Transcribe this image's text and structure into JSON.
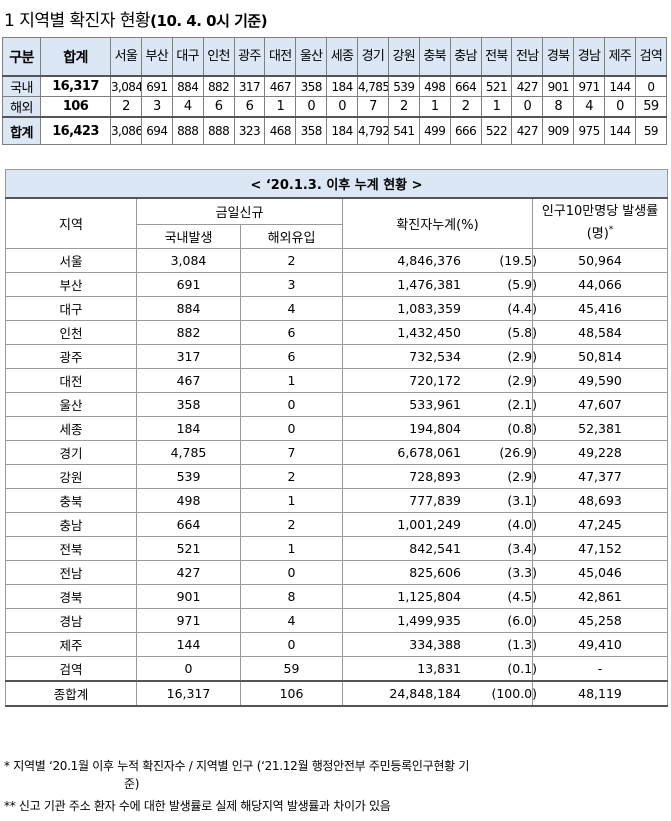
{
  "title": {
    "prefix": "1 지역별 확진자 현황",
    "suffix": "(10. 4. 0시 기준)"
  },
  "top_table": {
    "col_label": "구분",
    "total_label": "합계",
    "regions": [
      "서울",
      "부산",
      "대구",
      "인천",
      "광주",
      "대전",
      "울산",
      "세종",
      "경기",
      "강원",
      "충북",
      "충남",
      "전북",
      "전남",
      "경북",
      "경남",
      "제주",
      "검역"
    ],
    "rows": [
      {
        "label": "국내",
        "total": "16,317",
        "values": [
          "3,084",
          "691",
          "884",
          "882",
          "317",
          "467",
          "358",
          "184",
          "4,785",
          "539",
          "498",
          "664",
          "521",
          "427",
          "901",
          "971",
          "144",
          "0"
        ]
      },
      {
        "label": "해외",
        "total": "106",
        "values": [
          "2",
          "3",
          "4",
          "6",
          "6",
          "1",
          "0",
          "0",
          "7",
          "2",
          "1",
          "2",
          "1",
          "0",
          "8",
          "4",
          "0",
          "59"
        ]
      },
      {
        "label": "합계",
        "total": "16,423",
        "values": [
          "3,086",
          "694",
          "888",
          "888",
          "323",
          "468",
          "358",
          "184",
          "4,792",
          "541",
          "499",
          "666",
          "522",
          "427",
          "909",
          "975",
          "144",
          "59"
        ]
      }
    ]
  },
  "cumulative_table": {
    "caption": "< ‘20.1.3. 이후 누계 현황 >",
    "headers": {
      "region": "지역",
      "today_new": "금일신규",
      "domestic": "국내발생",
      "overseas": "해외유입",
      "cumulative": "확진자누계(%)",
      "rate": "인구10만명당 발생률(명)",
      "rate_mark": "*"
    },
    "rows": [
      {
        "region": "서울",
        "domestic": "3,084",
        "overseas": "2",
        "cumulative": "4,846,376",
        "pct": "(19.5)",
        "rate": "50,964"
      },
      {
        "region": "부산",
        "domestic": "691",
        "overseas": "3",
        "cumulative": "1,476,381",
        "pct": "(5.9)",
        "rate": "44,066"
      },
      {
        "region": "대구",
        "domestic": "884",
        "overseas": "4",
        "cumulative": "1,083,359",
        "pct": "(4.4)",
        "rate": "45,416"
      },
      {
        "region": "인천",
        "domestic": "882",
        "overseas": "6",
        "cumulative": "1,432,450",
        "pct": "(5.8)",
        "rate": "48,584"
      },
      {
        "region": "광주",
        "domestic": "317",
        "overseas": "6",
        "cumulative": "732,534",
        "pct": "(2.9)",
        "rate": "50,814"
      },
      {
        "region": "대전",
        "domestic": "467",
        "overseas": "1",
        "cumulative": "720,172",
        "pct": "(2.9)",
        "rate": "49,590"
      },
      {
        "region": "울산",
        "domestic": "358",
        "overseas": "0",
        "cumulative": "533,961",
        "pct": "(2.1)",
        "rate": "47,607"
      },
      {
        "region": "세종",
        "domestic": "184",
        "overseas": "0",
        "cumulative": "194,804",
        "pct": "(0.8)",
        "rate": "52,381"
      },
      {
        "region": "경기",
        "domestic": "4,785",
        "overseas": "7",
        "cumulative": "6,678,061",
        "pct": "(26.9)",
        "rate": "49,228"
      },
      {
        "region": "강원",
        "domestic": "539",
        "overseas": "2",
        "cumulative": "728,893",
        "pct": "(2.9)",
        "rate": "47,377"
      },
      {
        "region": "충북",
        "domestic": "498",
        "overseas": "1",
        "cumulative": "777,839",
        "pct": "(3.1)",
        "rate": "48,693"
      },
      {
        "region": "충남",
        "domestic": "664",
        "overseas": "2",
        "cumulative": "1,001,249",
        "pct": "(4.0)",
        "rate": "47,245"
      },
      {
        "region": "전북",
        "domestic": "521",
        "overseas": "1",
        "cumulative": "842,541",
        "pct": "(3.4)",
        "rate": "47,152"
      },
      {
        "region": "전남",
        "domestic": "427",
        "overseas": "0",
        "cumulative": "825,606",
        "pct": "(3.3)",
        "rate": "45,046"
      },
      {
        "region": "경북",
        "domestic": "901",
        "overseas": "8",
        "cumulative": "1,125,804",
        "pct": "(4.5)",
        "rate": "42,861"
      },
      {
        "region": "경남",
        "domestic": "971",
        "overseas": "4",
        "cumulative": "1,499,935",
        "pct": "(6.0)",
        "rate": "45,258"
      },
      {
        "region": "제주",
        "domestic": "144",
        "overseas": "0",
        "cumulative": "334,388",
        "pct": "(1.3)",
        "rate": "49,410"
      },
      {
        "region": "검역",
        "domestic": "0",
        "overseas": "59",
        "cumulative": "13,831",
        "pct": "(0.1)",
        "rate": "-"
      }
    ],
    "total": {
      "region": "종합계",
      "domestic": "16,317",
      "overseas": "106",
      "cumulative": "24,848,184",
      "pct": "(100.0)",
      "rate": "48,119"
    }
  },
  "footnotes": {
    "fn1_a": "* 지역별 ‘20.1월 이후 누적 확진자수 / 지역별 인구 (‘21.12월 행정안전부 주민등록인구현황 기",
    "fn1_b": "준)",
    "fn2": "** 신고 기관 주소 환자 수에 대한 발생률로 실제 해당지역 발생률과 차이가 있음"
  }
}
